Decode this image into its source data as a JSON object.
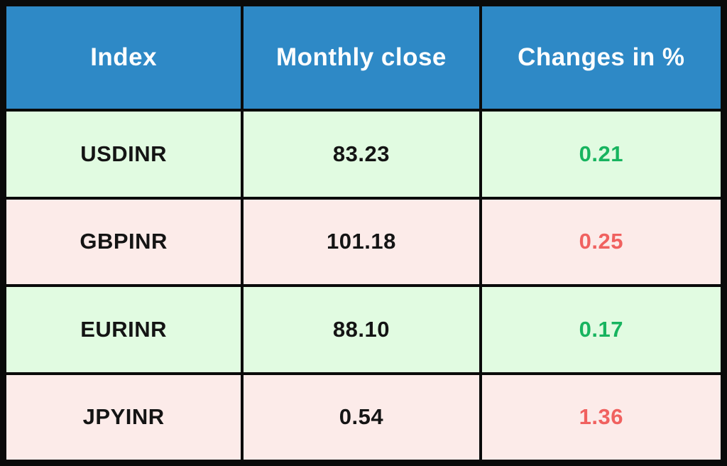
{
  "colors": {
    "border-color": "#0a0a0a",
    "header-bg": "#2e89c6",
    "header-text": "#fdfefe",
    "row-green-bg": "#e1fbe1",
    "row-pink-bg": "#fcebe9",
    "cell-text": "#141414",
    "up-color": "#17b45f",
    "down-color": "#f0615f"
  },
  "chart_data": {
    "type": "table",
    "columns": [
      "Index",
      "Monthly close",
      "Changes in %"
    ],
    "rows": [
      {
        "index": "USDINR",
        "monthly_close": "83.23",
        "change_pct": "0.21",
        "direction": "up"
      },
      {
        "index": "GBPINR",
        "monthly_close": "101.18",
        "change_pct": "0.25",
        "direction": "down"
      },
      {
        "index": "EURINR",
        "monthly_close": "88.10",
        "change_pct": "0.17",
        "direction": "up"
      },
      {
        "index": "JPYINR",
        "monthly_close": "0.54",
        "change_pct": "1.36",
        "direction": "down"
      }
    ]
  }
}
